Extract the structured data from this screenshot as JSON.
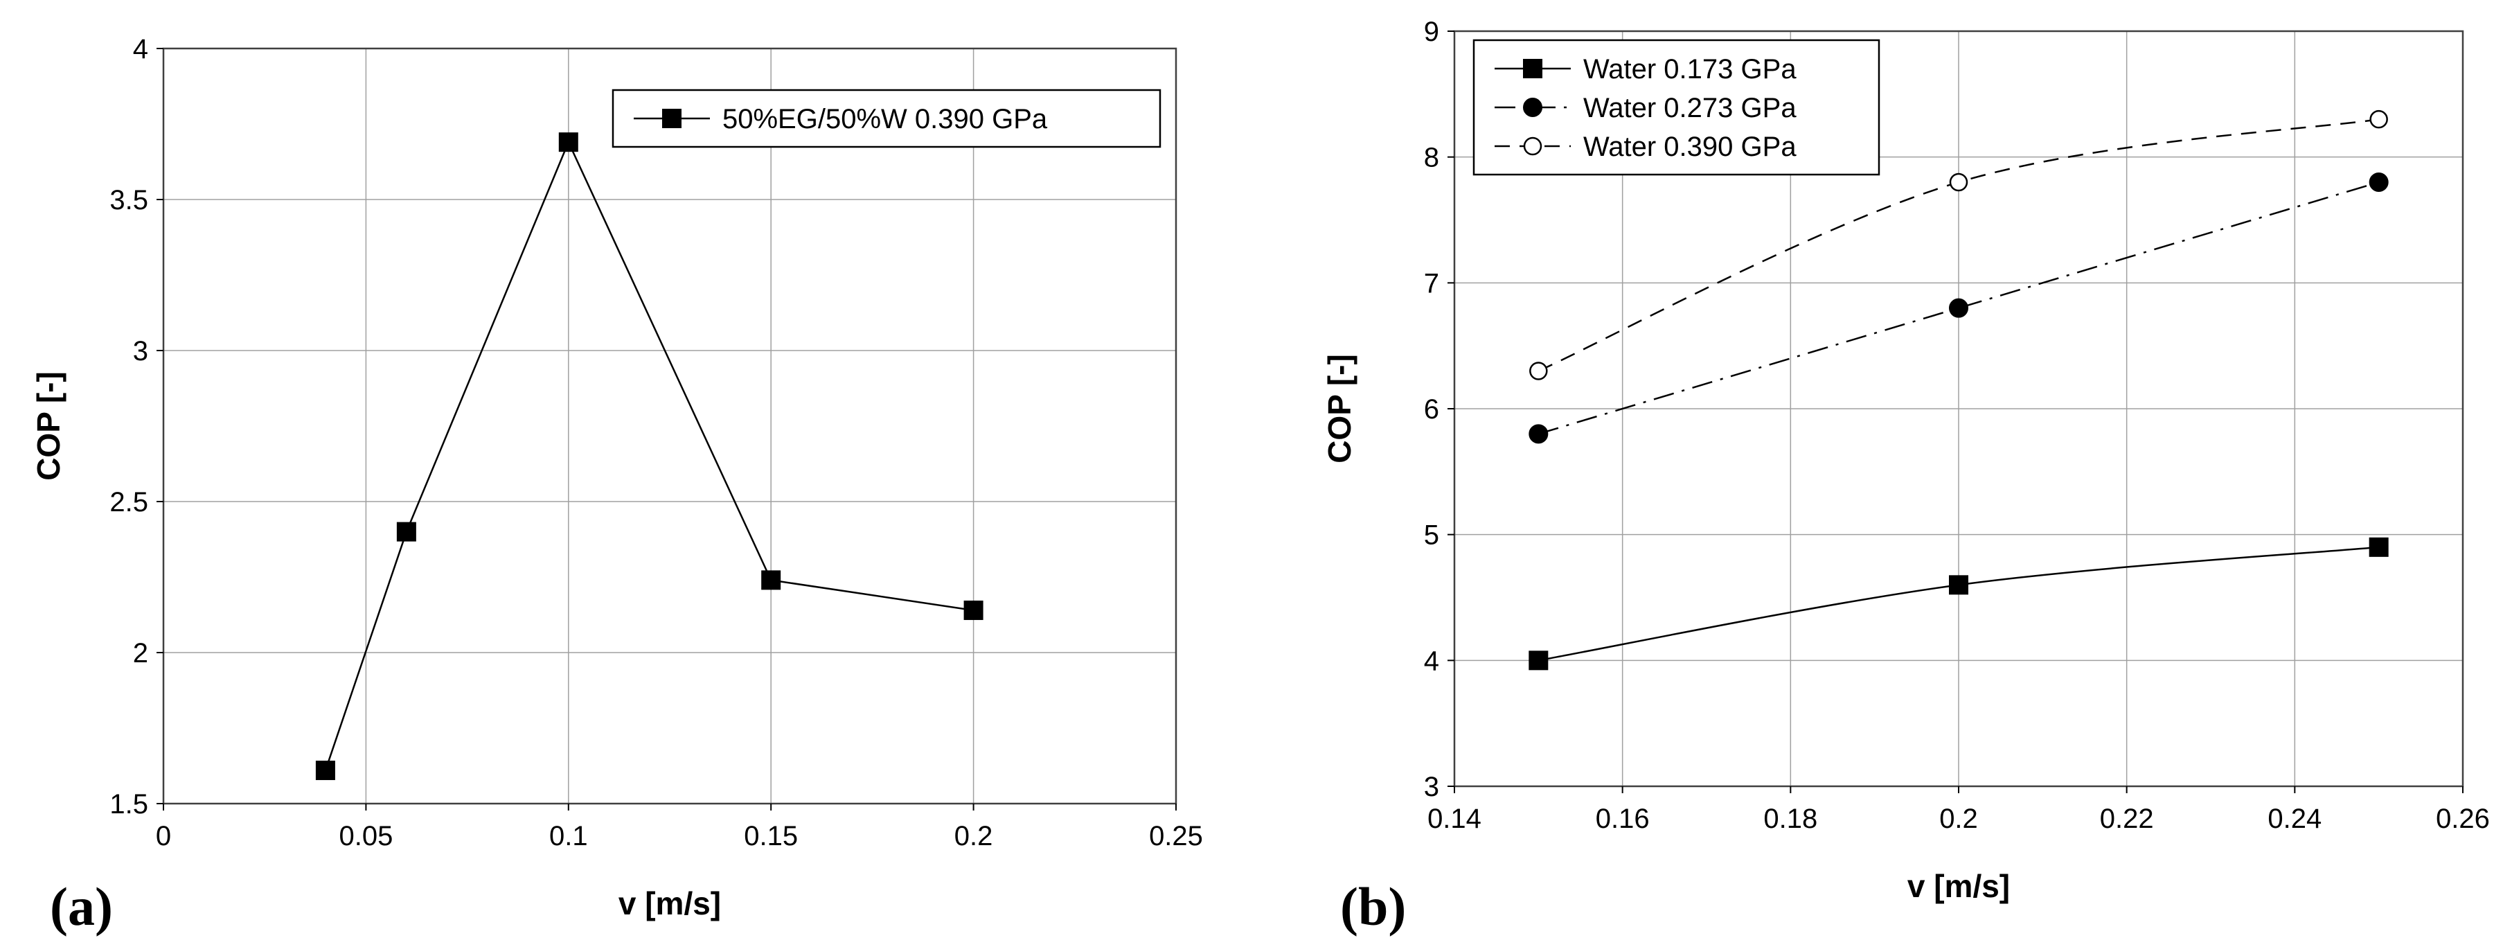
{
  "chart_data": [
    {
      "type": "line",
      "panel_label": "(a)",
      "title": "",
      "xlabel": "v [m/s]",
      "ylabel": "COP [-]",
      "xlim": [
        0,
        0.25
      ],
      "ylim": [
        1.5,
        4
      ],
      "xticks": [
        "0",
        "0.05",
        "0.1",
        "0.15",
        "0.2",
        "0.25"
      ],
      "yticks": [
        "1.5",
        "2",
        "2.5",
        "3",
        "3.5",
        "4"
      ],
      "grid": true,
      "legend_position": "top-right",
      "series": [
        {
          "name": "50%EG/50%W 0.390 GPa",
          "marker": "square-filled",
          "line": "solid",
          "x": [
            0.04,
            0.06,
            0.1,
            0.15,
            0.2
          ],
          "y": [
            1.61,
            2.4,
            3.69,
            2.24,
            2.14
          ]
        }
      ]
    },
    {
      "type": "line",
      "panel_label": "(b)",
      "title": "",
      "xlabel": "v [m/s]",
      "ylabel": "COP [-]",
      "xlim": [
        0.14,
        0.26
      ],
      "ylim": [
        3,
        9
      ],
      "xticks": [
        "0.14",
        "0.16",
        "0.18",
        "0.2",
        "0.22",
        "0.24",
        "0.26"
      ],
      "yticks": [
        "3",
        "4",
        "5",
        "6",
        "7",
        "8",
        "9"
      ],
      "grid": true,
      "legend_position": "top-left",
      "series": [
        {
          "name": "Water 0.173 GPa",
          "marker": "square-filled",
          "line": "solid",
          "x": [
            0.15,
            0.2,
            0.25
          ],
          "y": [
            4.0,
            4.6,
            4.9
          ]
        },
        {
          "name": "Water 0.273 GPa",
          "marker": "circle-filled",
          "line": "dash-dot",
          "x": [
            0.15,
            0.2,
            0.25
          ],
          "y": [
            5.8,
            6.8,
            7.8
          ]
        },
        {
          "name": "Water 0.390 GPa",
          "marker": "circle-open",
          "line": "dashed",
          "x": [
            0.15,
            0.2,
            0.25
          ],
          "y": [
            6.3,
            7.8,
            8.3
          ]
        }
      ]
    }
  ],
  "colors": {
    "line": "#000000",
    "grid": "#a0a0a0",
    "frame": "#404040",
    "background": "#ffffff"
  }
}
